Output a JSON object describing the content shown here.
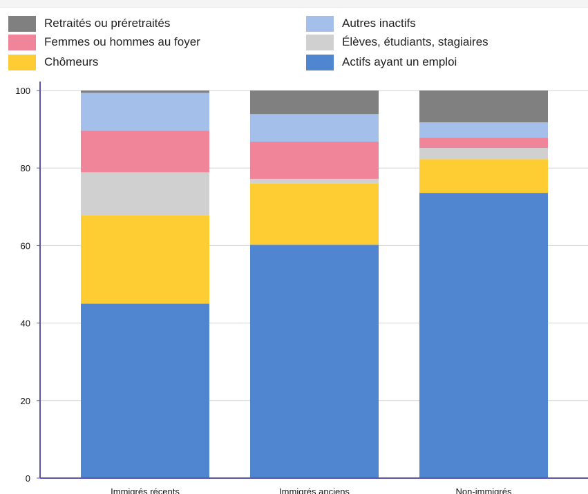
{
  "chart_data": {
    "type": "bar",
    "stacked": true,
    "categories": [
      "Immigrés récents",
      "Immigrés anciens",
      "Non-immigrés"
    ],
    "series": [
      {
        "name": "Actifs ayant un emploi",
        "color": "#5085d0",
        "values": [
          45,
          60.2,
          73.6
        ]
      },
      {
        "name": "Chômeurs",
        "color": "#fecc33",
        "values": [
          22.8,
          15.8,
          8.7
        ]
      },
      {
        "name": "Élèves, étudiants, stagiaires",
        "color": "#d0d0d0",
        "values": [
          11.1,
          1.2,
          2.9
        ]
      },
      {
        "name": "Femmes ou hommes au foyer",
        "color": "#f08499",
        "values": [
          10.8,
          9.6,
          2.6
        ]
      },
      {
        "name": "Autres inactifs",
        "color": "#a4bfea",
        "values": [
          9.7,
          7.1,
          4.0
        ]
      },
      {
        "name": "Retraités ou préretraités",
        "color": "#808080",
        "values": [
          0.6,
          6.1,
          8.2
        ]
      }
    ],
    "ylim": [
      0,
      100
    ],
    "yticks": [
      0,
      20,
      40,
      60,
      80,
      100
    ],
    "grid": true,
    "legend_position": "top"
  }
}
